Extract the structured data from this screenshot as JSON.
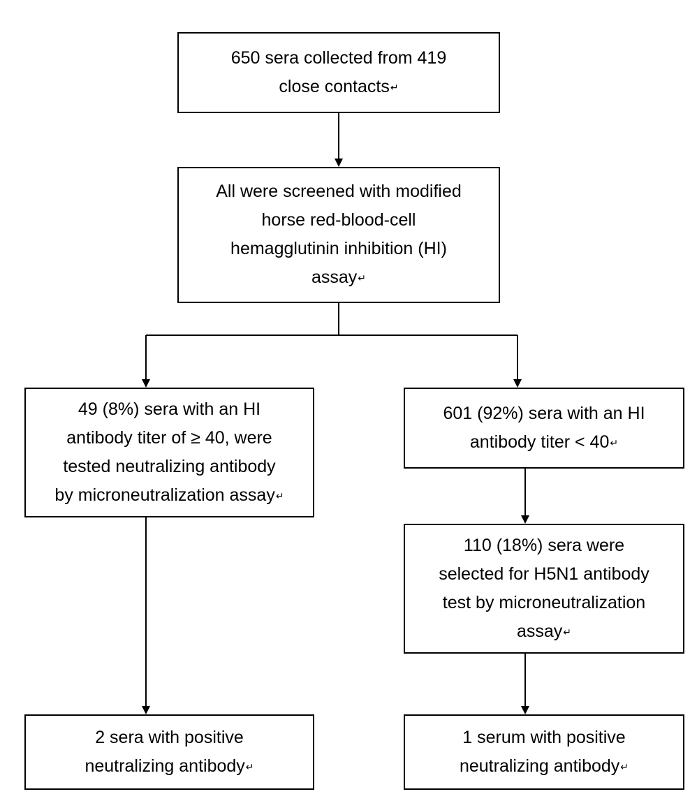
{
  "boxes": {
    "collected": {
      "lines": [
        "650 sera collected from 419",
        "close contacts"
      ]
    },
    "screened": {
      "lines": [
        "All were screened with modified",
        "horse red-blood-cell",
        "hemagglutinin inhibition (HI)",
        "assay"
      ]
    },
    "high_titer": {
      "lines": [
        "49 (8%) sera with an HI",
        "antibody titer of ≥ 40, were",
        "tested neutralizing antibody",
        "by microneutralization assay"
      ]
    },
    "low_titer": {
      "lines": [
        "601 (92%) sera with an HI",
        "antibody titer < 40"
      ]
    },
    "selected": {
      "lines": [
        "110 (18%) sera were",
        "selected for H5N1 antibody",
        "test by microneutralization",
        "assay"
      ]
    },
    "positive_left": {
      "lines": [
        "2 sera with positive",
        "neutralizing antibody"
      ]
    },
    "positive_right": {
      "lines": [
        "1 serum with positive",
        "neutralizing antibody"
      ]
    }
  },
  "return_mark": "↵"
}
